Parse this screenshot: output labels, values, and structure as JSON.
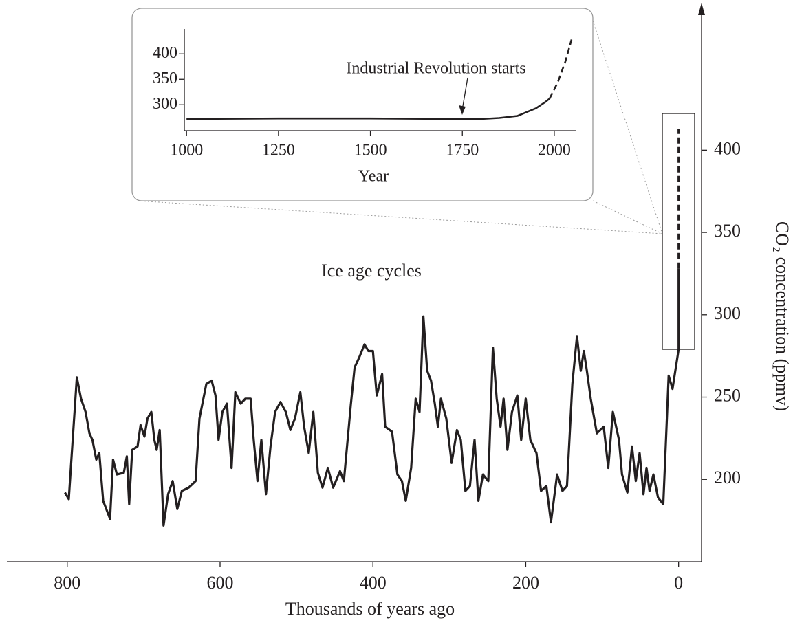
{
  "chart_data": [
    {
      "type": "line",
      "xlabel": "Thousands of years ago",
      "ylabel": "CO₂ concentration (ppmv)",
      "annotation": "Ice age cycles",
      "xlim": [
        879,
        -30
      ],
      "xticks": [
        800,
        600,
        400,
        200,
        0
      ],
      "ylim": [
        150,
        487
      ],
      "yticks": [
        200,
        250,
        300,
        350,
        400
      ],
      "y_axis_position": "right",
      "series": [
        {
          "color": "#231f20",
          "linestyle": "solid",
          "x": [
            803,
            798,
            787.5,
            782,
            776,
            771,
            767,
            762,
            758,
            753,
            744,
            740,
            735,
            726,
            722,
            719,
            715,
            708,
            704,
            699,
            695,
            690,
            686,
            683,
            679,
            674,
            668,
            662,
            656,
            650,
            641,
            632,
            627,
            618,
            611,
            606,
            602,
            597,
            591,
            585,
            580,
            573,
            567,
            560,
            556,
            551,
            546,
            540,
            534,
            528,
            521,
            514,
            508,
            502,
            495,
            490,
            484,
            478,
            472,
            466,
            459,
            452,
            443,
            438,
            429,
            424,
            418,
            411,
            406,
            400,
            395,
            388,
            384,
            375,
            368,
            362,
            357,
            350,
            344,
            339,
            334,
            329,
            324,
            319,
            315,
            311,
            304,
            297,
            290,
            285,
            279,
            273,
            267,
            262,
            256,
            249,
            243,
            238,
            233,
            229,
            224,
            218,
            211,
            206,
            200,
            194,
            186,
            180,
            173,
            167,
            159,
            152,
            146,
            139,
            133,
            128,
            124,
            120,
            115,
            107,
            98,
            92,
            86,
            78,
            74,
            67,
            61,
            56,
            51,
            46,
            42,
            38,
            33,
            27,
            20,
            15,
            13,
            8,
            0
          ],
          "values": [
            192,
            188,
            262,
            249,
            241,
            228,
            224,
            212,
            216,
            187,
            176,
            212,
            203,
            204,
            214,
            185,
            218,
            220,
            233,
            226,
            237,
            241,
            224,
            218,
            230,
            172,
            191,
            199,
            182,
            193,
            195,
            199,
            237,
            258,
            260,
            251,
            224,
            241,
            246,
            207,
            253,
            246,
            249,
            249,
            224,
            199,
            224,
            191,
            220,
            241,
            247,
            241,
            230,
            237,
            253,
            232,
            216,
            241,
            204,
            195,
            207,
            195,
            205,
            199,
            245,
            268,
            274,
            282,
            278,
            278,
            251,
            264,
            232,
            229,
            203,
            199,
            187,
            207,
            249,
            241,
            299,
            266,
            260,
            246,
            232,
            249,
            237,
            210,
            230,
            224,
            193,
            196,
            224,
            187,
            203,
            199,
            280,
            249,
            232,
            249,
            218,
            241,
            251,
            224,
            249,
            224,
            216,
            193,
            196,
            174,
            203,
            193,
            196,
            258,
            287,
            266,
            278,
            266,
            249,
            228,
            232,
            207,
            241,
            224,
            203,
            192,
            220,
            199,
            216,
            191,
            207,
            193,
            203,
            189,
            185,
            241,
            263,
            255,
            279
          ]
        },
        {
          "color": "#231f20",
          "linestyle": "solid",
          "x": [
            0,
            0
          ],
          "values": [
            279,
            328
          ]
        },
        {
          "color": "#231f20",
          "linestyle": "dashed",
          "x": [
            0,
            0
          ],
          "values": [
            328,
            413
          ]
        }
      ]
    },
    {
      "type": "line",
      "xlabel": "Year",
      "annotation": "Industrial Revolution starts",
      "xlim": [
        994,
        2060
      ],
      "xticks": [
        1000,
        1250,
        1500,
        1750,
        2000
      ],
      "ylim": [
        249,
        449
      ],
      "yticks": [
        300,
        350,
        400
      ],
      "y_axis_position": "left",
      "series": [
        {
          "color": "#231f20",
          "linestyle": "solid",
          "x": [
            1000,
            1250,
            1500,
            1750,
            1800,
            1850,
            1900,
            1950,
            1975,
            1987
          ],
          "values": [
            272,
            273,
            273,
            272,
            272,
            274,
            278,
            293,
            305,
            312
          ]
        },
        {
          "color": "#231f20",
          "linestyle": "dashed",
          "x": [
            1987,
            2010,
            2030,
            2047
          ],
          "values": [
            312,
            345,
            385,
            428
          ]
        }
      ]
    }
  ]
}
